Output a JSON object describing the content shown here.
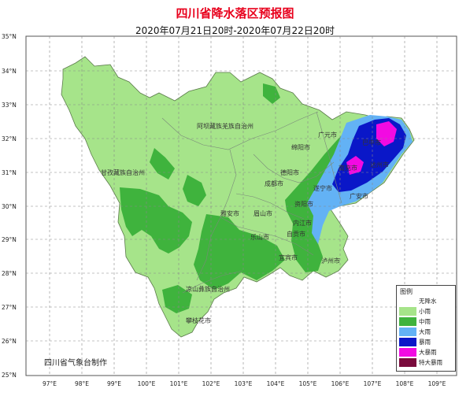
{
  "title": "四川省降水落区预报图",
  "subtitle": "2020年07月21日20时-2020年07月22日20时",
  "credit": "四川省气象台制作",
  "axes": {
    "lat_labels": [
      "35°N",
      "34°N",
      "33°N",
      "32°N",
      "31°N",
      "30°N",
      "29°N",
      "28°N",
      "27°N",
      "26°N",
      "25°N"
    ],
    "lon_labels": [
      "97°E",
      "98°E",
      "99°E",
      "100°E",
      "101°E",
      "102°E",
      "103°E",
      "104°E",
      "105°E",
      "106°E",
      "107°E",
      "108°E",
      "109°E"
    ]
  },
  "places": [
    "阿坝藏族羌族自治州",
    "广元市",
    "巴中市",
    "绵阳市",
    "德阳市",
    "南充市",
    "达州市",
    "甘孜藏族自治州",
    "成都市",
    "遂宁市",
    "广安市",
    "资阳市",
    "雅安市",
    "眉山市",
    "内江市",
    "乐山市",
    "自贡市",
    "宜宾市",
    "泸州市",
    "凉山彝族自治州",
    "攀枝花市"
  ],
  "legend": {
    "title": "图例",
    "items": [
      {
        "label": "无降水",
        "color": "#ffffff"
      },
      {
        "label": "小雨",
        "color": "#a6e48a"
      },
      {
        "label": "中雨",
        "color": "#3fb33d"
      },
      {
        "label": "大雨",
        "color": "#63b2f5"
      },
      {
        "label": "暴雨",
        "color": "#0a17c8"
      },
      {
        "label": "大暴雨",
        "color": "#f20ae2"
      },
      {
        "label": "特大暴雨",
        "color": "#7a0a3c"
      }
    ]
  },
  "colors": {
    "light_rain": "#a6e48a",
    "moderate_rain": "#3fb33d",
    "heavy_rain": "#63b2f5",
    "rainstorm": "#0a17c8",
    "heavy_rainstorm": "#f20ae2",
    "title": "#e8001c"
  }
}
